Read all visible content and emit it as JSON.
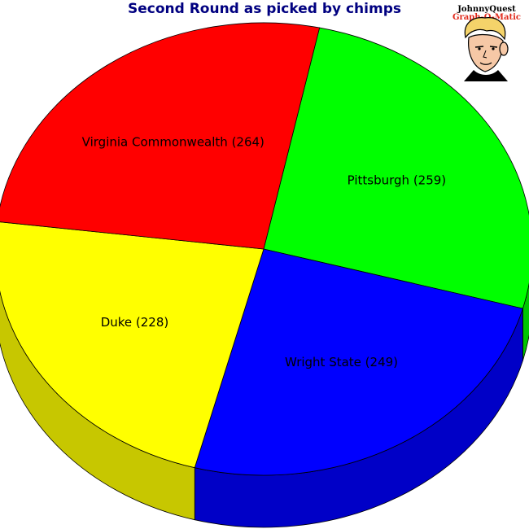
{
  "chart_data": {
    "type": "pie",
    "title": "Second Round as picked by chimps",
    "slices": [
      {
        "label": "Pittsburgh",
        "value": 259,
        "display": "Pittsburgh (259)",
        "color": "#00ff00"
      },
      {
        "label": "Wright State",
        "value": 249,
        "display": "Wright State (249)",
        "color": "#0000ff"
      },
      {
        "label": "Duke",
        "value": 228,
        "display": "Duke (228)",
        "color": "#ffff00"
      },
      {
        "label": "Virginia Commonwealth",
        "value": 264,
        "display": "Virginia Commonwealth (264)",
        "color": "#ff0000"
      }
    ],
    "legend": "none",
    "style": "3d"
  },
  "logo": {
    "line1": "JohnnyQuest",
    "line2": "Graph-O-Matic"
  },
  "colors": {
    "title": "#000080",
    "edge": "#000000"
  }
}
